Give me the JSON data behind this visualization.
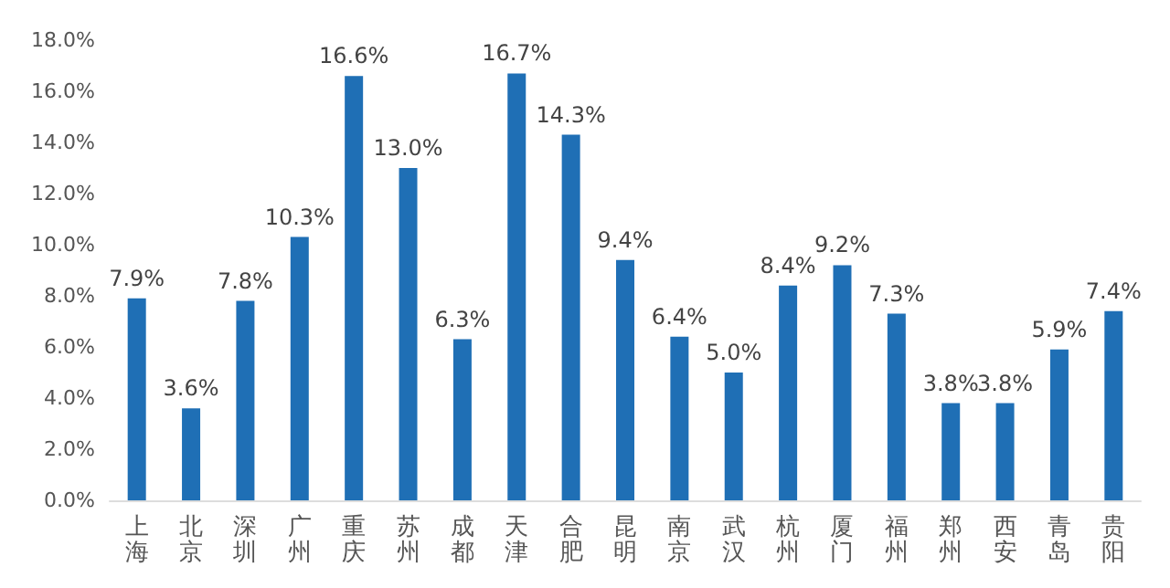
{
  "chart_data": {
    "type": "bar",
    "categories": [
      "上海",
      "北京",
      "深圳",
      "广州",
      "重庆",
      "苏州",
      "成都",
      "天津",
      "合肥",
      "昆明",
      "南京",
      "武汉",
      "杭州",
      "厦门",
      "福州",
      "郑州",
      "西安",
      "青岛",
      "贵阳"
    ],
    "values": [
      7.9,
      3.6,
      7.8,
      10.3,
      16.6,
      13.0,
      6.3,
      16.7,
      14.3,
      9.4,
      6.4,
      5.0,
      8.4,
      9.2,
      7.3,
      3.8,
      3.8,
      5.9,
      7.4
    ],
    "value_labels": [
      "7.9%",
      "3.6%",
      "7.8%",
      "10.3%",
      "16.6%",
      "13.0%",
      "6.3%",
      "16.7%",
      "14.3%",
      "9.4%",
      "6.4%",
      "5.0%",
      "8.4%",
      "9.2%",
      "7.3%",
      "3.8%",
      "3.8%",
      "5.9%",
      "7.4%"
    ],
    "color": "#1f6fb5",
    "ylim": [
      0,
      18
    ],
    "yticks": [
      {
        "value": 0,
        "label": "0.0%"
      },
      {
        "value": 2,
        "label": "2.0%"
      },
      {
        "value": 4,
        "label": "4.0%"
      },
      {
        "value": 6,
        "label": "6.0%"
      },
      {
        "value": 8,
        "label": "8.0%"
      },
      {
        "value": 10,
        "label": "10.0%"
      },
      {
        "value": 12,
        "label": "12.0%"
      },
      {
        "value": 14,
        "label": "14.0%"
      },
      {
        "value": 16,
        "label": "16.0%"
      },
      {
        "value": 18,
        "label": "18.0%"
      }
    ],
    "grid": false
  }
}
